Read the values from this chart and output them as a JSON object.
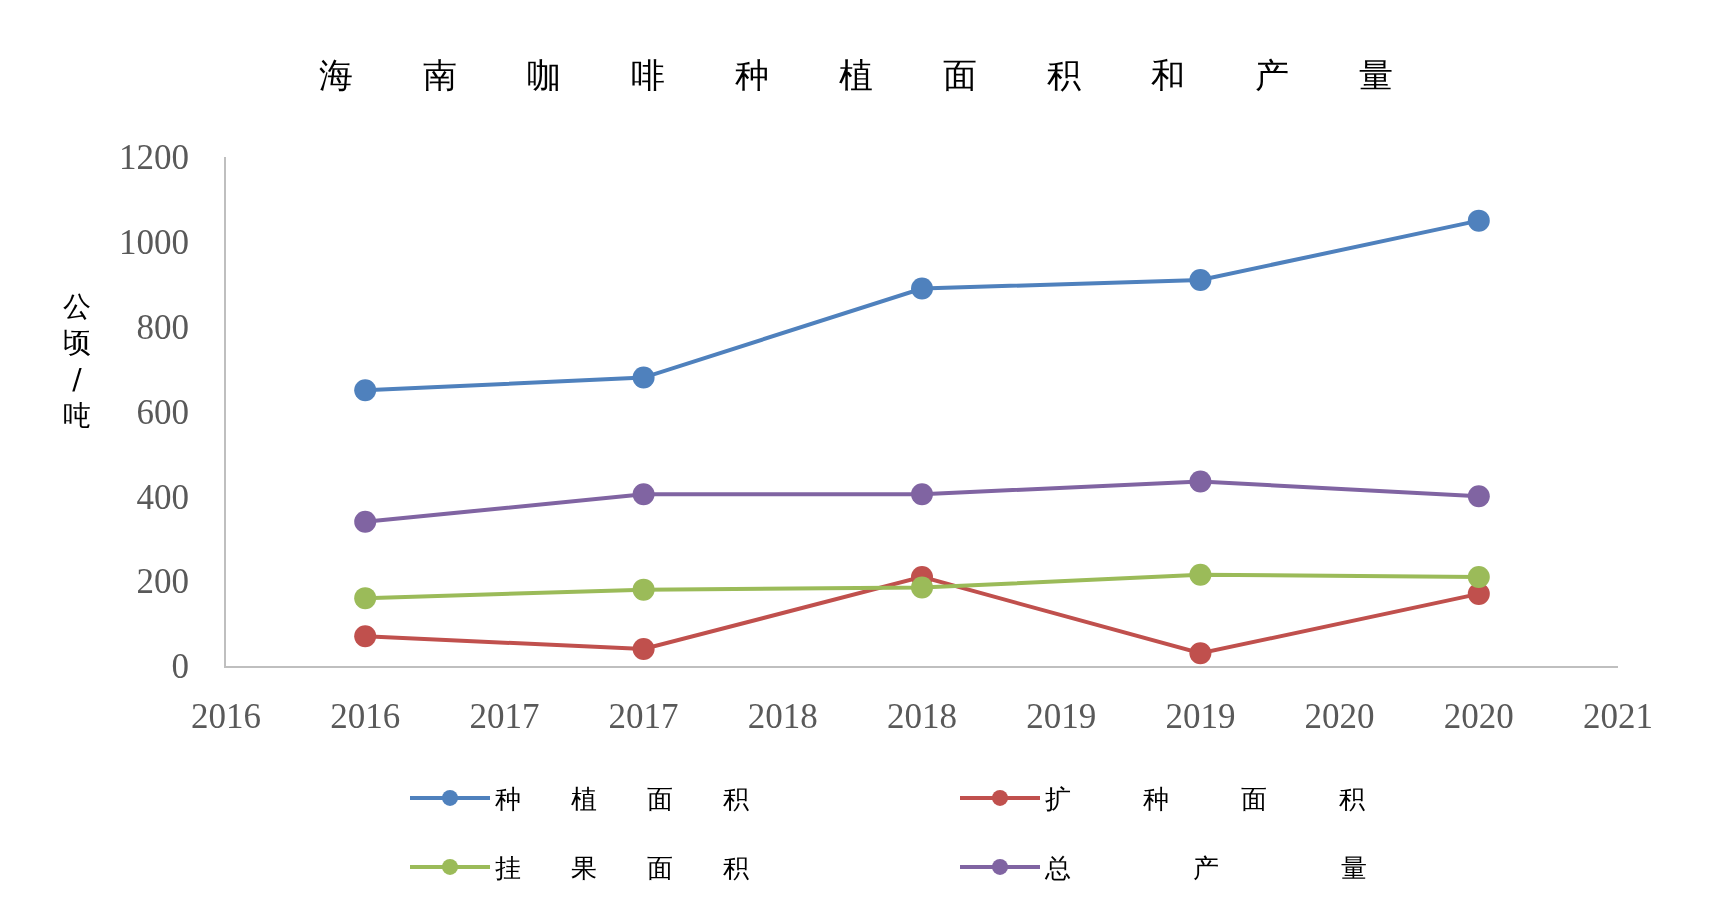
{
  "chart_data": {
    "type": "line",
    "title": "海南咖啡种植面积和产量",
    "ylabel": "公顷/吨",
    "x": [
      2016,
      2017,
      2018,
      2019,
      2020
    ],
    "series": [
      {
        "name": "种植面积",
        "color": "#4f81bd",
        "values": [
          650,
          680,
          890,
          910,
          1050
        ]
      },
      {
        "name": "扩种面积",
        "color": "#c0504d",
        "values": [
          70,
          40,
          210,
          30,
          170
        ]
      },
      {
        "name": "挂果面积",
        "color": "#9bbb59",
        "values": [
          160,
          180,
          185,
          215,
          210
        ]
      },
      {
        "name": "总产量",
        "color": "#8064a2",
        "values": [
          340,
          405,
          405,
          435,
          400
        ]
      }
    ],
    "xlim": [
      2015.5,
      2020.5
    ],
    "xticks": [
      {
        "value": 2015.5,
        "label": "2016"
      },
      2016,
      {
        "value": 2016.5,
        "label": "2017"
      },
      2017,
      {
        "value": 2017.5,
        "label": "2018"
      },
      2018,
      {
        "value": 2018.5,
        "label": "2019"
      },
      2019,
      {
        "value": 2019.5,
        "label": "2020"
      },
      2020,
      {
        "value": 2020.5,
        "label": "2021"
      }
    ],
    "ylim": [
      0,
      1200
    ],
    "yticks": [
      0,
      200,
      400,
      600,
      800,
      1000,
      1200
    ],
    "grid": false,
    "legend": "bottom",
    "marker": "circle",
    "line_style": "solid"
  }
}
